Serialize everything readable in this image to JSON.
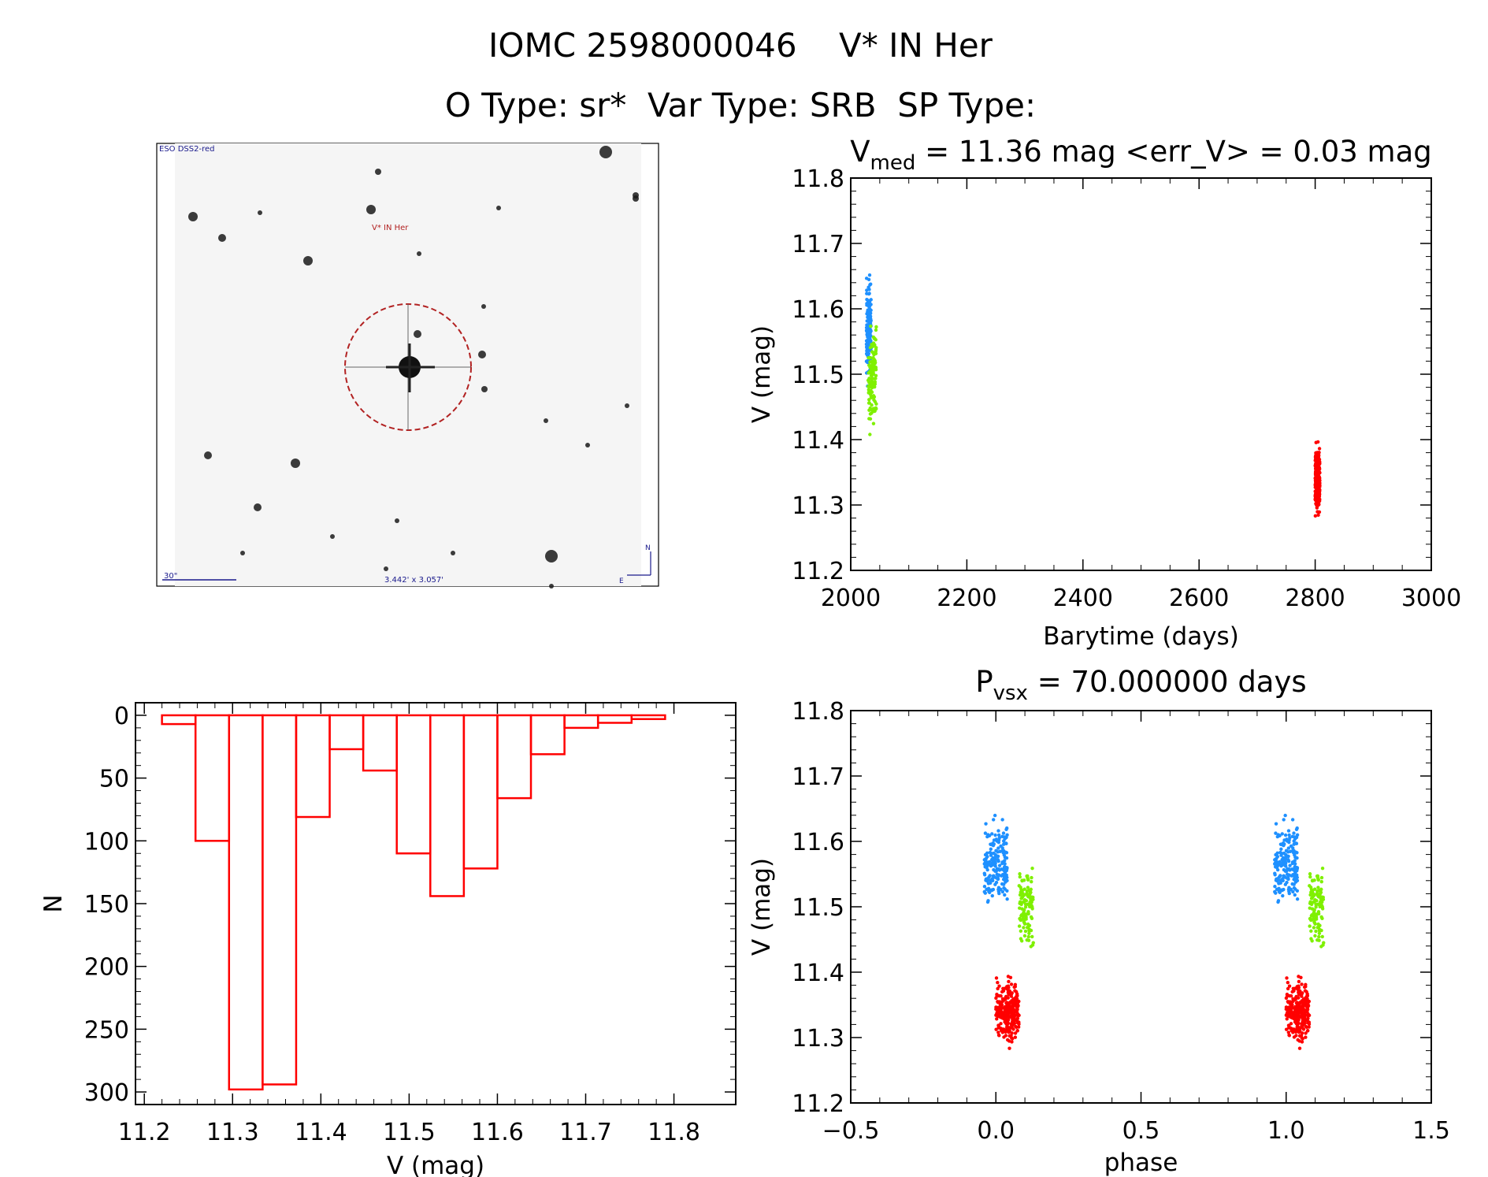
{
  "header": {
    "line1": "IOMC 2598000046    V* IN Her",
    "line2": "O Type: sr*  Var Type: SRB  SP Type:"
  },
  "image_panel": {
    "survey_label": "ESO DSS2-red",
    "target_label": "V* IN Her",
    "scale_label": "30\"",
    "fov_label": "3.442' x 3.057'",
    "compass_n": "N",
    "compass_e": "E"
  },
  "colors": {
    "red": "#ff0000",
    "blue": "#1e90ff",
    "green": "#7ff000"
  },
  "chart_data": [
    {
      "type": "scatter",
      "title": "V_med = 11.36 mag <err_V> = 0.03 mag",
      "title_parts": {
        "v": "V",
        "sub": "med",
        "rest": " = 11.36 mag <err_V> = 0.03 mag"
      },
      "xlabel": "Barytime (days)",
      "ylabel": "V (mag)",
      "xlim": [
        2000,
        3000
      ],
      "ylim": [
        11.8,
        11.2
      ],
      "xticks": [
        2000,
        2200,
        2400,
        2600,
        2800,
        3000
      ],
      "yticks": [
        11.2,
        11.3,
        11.4,
        11.5,
        11.6,
        11.7,
        11.8
      ],
      "series": [
        {
          "color": "blue",
          "x_range": [
            2027,
            2035
          ],
          "y_center": 11.57,
          "y_spread": 0.1,
          "n": 180
        },
        {
          "color": "green",
          "x_range": [
            2030,
            2044
          ],
          "y_center": 11.5,
          "y_spread": 0.12,
          "n": 130
        },
        {
          "color": "red",
          "x_range": [
            2800,
            2808
          ],
          "y_center": 11.34,
          "y_spread": 0.07,
          "n": 260
        }
      ]
    },
    {
      "type": "bar",
      "title": "",
      "xlabel": "V (mag)",
      "ylabel": "N",
      "xlim": [
        11.19,
        11.87
      ],
      "ylim": [
        -10,
        310
      ],
      "xticks": [
        11.2,
        11.3,
        11.4,
        11.5,
        11.6,
        11.7,
        11.8
      ],
      "yticks": [
        0,
        50,
        100,
        150,
        200,
        250,
        300
      ],
      "bin_width": 0.038,
      "bins": [
        {
          "start": 11.22,
          "value": 7
        },
        {
          "start": 11.258,
          "value": 100
        },
        {
          "start": 11.296,
          "value": 298
        },
        {
          "start": 11.334,
          "value": 294
        },
        {
          "start": 11.372,
          "value": 81
        },
        {
          "start": 11.41,
          "value": 27
        },
        {
          "start": 11.448,
          "value": 44
        },
        {
          "start": 11.486,
          "value": 110
        },
        {
          "start": 11.524,
          "value": 144
        },
        {
          "start": 11.562,
          "value": 122
        },
        {
          "start": 11.6,
          "value": 66
        },
        {
          "start": 11.638,
          "value": 31
        },
        {
          "start": 11.676,
          "value": 10
        },
        {
          "start": 11.714,
          "value": 6
        },
        {
          "start": 11.752,
          "value": 3
        }
      ]
    },
    {
      "type": "scatter",
      "title": "P_vsx = 70.000000 days",
      "title_parts": {
        "v": "P",
        "sub": "vsx",
        "rest": " = 70.000000 days"
      },
      "xlabel": "phase",
      "ylabel": "V (mag)",
      "xlim": [
        -0.5,
        1.5
      ],
      "ylim": [
        11.8,
        11.2
      ],
      "xticks": [
        -0.5,
        0.0,
        0.5,
        1.0,
        1.5
      ],
      "xtick_labels": [
        "−0.5",
        "0.0",
        "0.5",
        "1.0",
        "1.5"
      ],
      "yticks": [
        11.2,
        11.3,
        11.4,
        11.5,
        11.6,
        11.7,
        11.8
      ],
      "series": [
        {
          "color": "blue",
          "x_range": [
            -0.04,
            0.04
          ],
          "y_center": 11.57,
          "y_spread": 0.1,
          "n": 180
        },
        {
          "color": "green",
          "x_range": [
            0.08,
            0.13
          ],
          "y_center": 11.5,
          "y_spread": 0.1,
          "n": 110
        },
        {
          "color": "red",
          "x_range": [
            0.0,
            0.08
          ],
          "y_center": 11.34,
          "y_spread": 0.07,
          "n": 260
        }
      ],
      "repeat_offset": 1.0
    }
  ]
}
